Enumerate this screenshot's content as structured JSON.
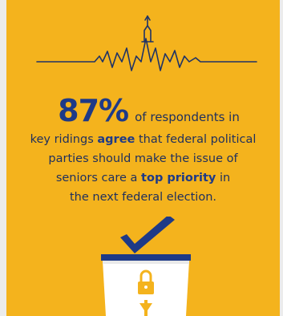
{
  "infographic": {
    "stat_value": "87%",
    "stat_lead": "of respondents in",
    "line1_pre": "key ridings ",
    "line1_bold": "agree",
    "line1_post": " that federal political",
    "line2": "parties should make the issue of",
    "line3_pre": "seniors care a ",
    "line3_bold": "top priority",
    "line3_post": " in",
    "line4": "the next federal election."
  },
  "colors": {
    "background": "#f4b31d",
    "text": "#1e2f5e",
    "accent": "#1e3a87",
    "line": "#1f3366"
  },
  "icons": [
    "heartbeat-parliament-icon",
    "ballot-box-icon",
    "checkmark-icon",
    "padlock-icon"
  ]
}
